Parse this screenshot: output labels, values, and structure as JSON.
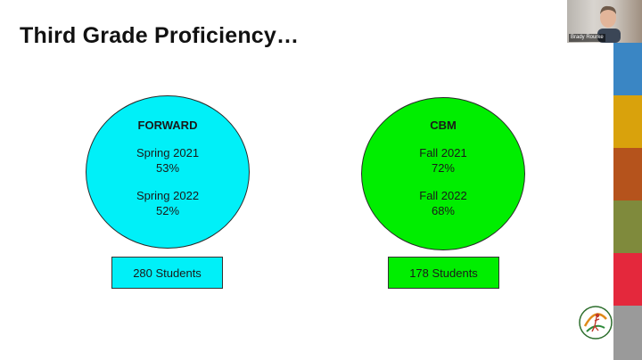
{
  "slide": {
    "title": "Third Grade Proficiency…"
  },
  "forward": {
    "heading": "FORWARD",
    "term1": "Spring 2021",
    "value1": "53%",
    "term2": "Spring 2022",
    "value2": "52%",
    "students": "280 Students",
    "color": "#00f0f8"
  },
  "cbm": {
    "heading": "CBM",
    "term1": "Fall 2021",
    "value1": "72%",
    "term2": "Fall 2022",
    "value2": "68%",
    "students": "178 Students",
    "color": "#00ee00"
  },
  "video": {
    "participant_name": "Brady Rourke"
  },
  "sidebar_stripes": [
    "#3a86c4",
    "#d9a20c",
    "#b5531c",
    "#7f8a3c",
    "#e4283c",
    "#9a9a9a"
  ],
  "logo": {
    "label": "School District of New Berlin — Expect Excellence"
  }
}
